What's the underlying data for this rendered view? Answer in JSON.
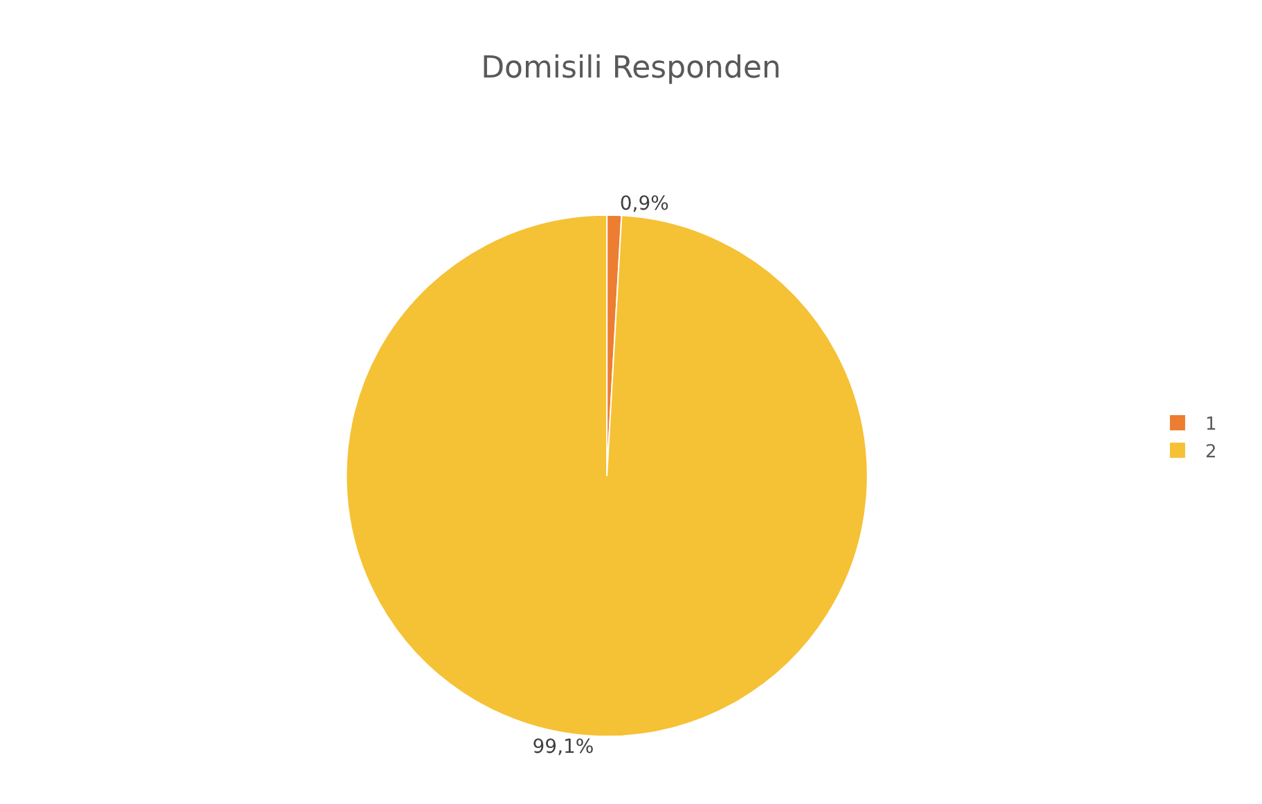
{
  "chart_data": {
    "type": "pie",
    "title": "Domisili Responden",
    "categories": [
      "1",
      "2"
    ],
    "values": [
      0.9,
      99.1
    ],
    "colors": [
      "#ed7d31",
      "#f5c135"
    ],
    "value_labels": [
      "0,9%",
      "99,1%"
    ],
    "legend": "right"
  }
}
